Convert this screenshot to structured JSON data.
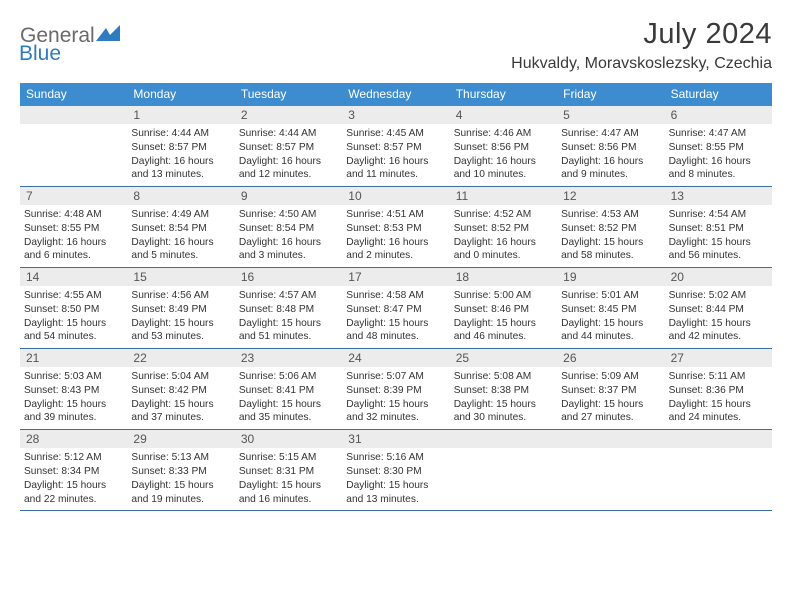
{
  "brand": {
    "general": "General",
    "blue": "Blue"
  },
  "title": "July 2024",
  "location": "Hukvaldy, Moravskoslezsky, Czechia",
  "colors": {
    "header_bg": "#3d8cd0",
    "header_text": "#ffffff",
    "daynum_bg": "#ececec",
    "daynum_text": "#555555",
    "body_text": "#333333",
    "border": "#3a6fa0",
    "brand_gray": "#6a6a6a",
    "brand_blue": "#2f7bbf"
  },
  "dow": [
    "Sunday",
    "Monday",
    "Tuesday",
    "Wednesday",
    "Thursday",
    "Friday",
    "Saturday"
  ],
  "weeks": [
    [
      {
        "num": "",
        "lines": []
      },
      {
        "num": "1",
        "lines": [
          "Sunrise: 4:44 AM",
          "Sunset: 8:57 PM",
          "Daylight: 16 hours",
          "and 13 minutes."
        ]
      },
      {
        "num": "2",
        "lines": [
          "Sunrise: 4:44 AM",
          "Sunset: 8:57 PM",
          "Daylight: 16 hours",
          "and 12 minutes."
        ]
      },
      {
        "num": "3",
        "lines": [
          "Sunrise: 4:45 AM",
          "Sunset: 8:57 PM",
          "Daylight: 16 hours",
          "and 11 minutes."
        ]
      },
      {
        "num": "4",
        "lines": [
          "Sunrise: 4:46 AM",
          "Sunset: 8:56 PM",
          "Daylight: 16 hours",
          "and 10 minutes."
        ]
      },
      {
        "num": "5",
        "lines": [
          "Sunrise: 4:47 AM",
          "Sunset: 8:56 PM",
          "Daylight: 16 hours",
          "and 9 minutes."
        ]
      },
      {
        "num": "6",
        "lines": [
          "Sunrise: 4:47 AM",
          "Sunset: 8:55 PM",
          "Daylight: 16 hours",
          "and 8 minutes."
        ]
      }
    ],
    [
      {
        "num": "7",
        "lines": [
          "Sunrise: 4:48 AM",
          "Sunset: 8:55 PM",
          "Daylight: 16 hours",
          "and 6 minutes."
        ]
      },
      {
        "num": "8",
        "lines": [
          "Sunrise: 4:49 AM",
          "Sunset: 8:54 PM",
          "Daylight: 16 hours",
          "and 5 minutes."
        ]
      },
      {
        "num": "9",
        "lines": [
          "Sunrise: 4:50 AM",
          "Sunset: 8:54 PM",
          "Daylight: 16 hours",
          "and 3 minutes."
        ]
      },
      {
        "num": "10",
        "lines": [
          "Sunrise: 4:51 AM",
          "Sunset: 8:53 PM",
          "Daylight: 16 hours",
          "and 2 minutes."
        ]
      },
      {
        "num": "11",
        "lines": [
          "Sunrise: 4:52 AM",
          "Sunset: 8:52 PM",
          "Daylight: 16 hours",
          "and 0 minutes."
        ]
      },
      {
        "num": "12",
        "lines": [
          "Sunrise: 4:53 AM",
          "Sunset: 8:52 PM",
          "Daylight: 15 hours",
          "and 58 minutes."
        ]
      },
      {
        "num": "13",
        "lines": [
          "Sunrise: 4:54 AM",
          "Sunset: 8:51 PM",
          "Daylight: 15 hours",
          "and 56 minutes."
        ]
      }
    ],
    [
      {
        "num": "14",
        "lines": [
          "Sunrise: 4:55 AM",
          "Sunset: 8:50 PM",
          "Daylight: 15 hours",
          "and 54 minutes."
        ]
      },
      {
        "num": "15",
        "lines": [
          "Sunrise: 4:56 AM",
          "Sunset: 8:49 PM",
          "Daylight: 15 hours",
          "and 53 minutes."
        ]
      },
      {
        "num": "16",
        "lines": [
          "Sunrise: 4:57 AM",
          "Sunset: 8:48 PM",
          "Daylight: 15 hours",
          "and 51 minutes."
        ]
      },
      {
        "num": "17",
        "lines": [
          "Sunrise: 4:58 AM",
          "Sunset: 8:47 PM",
          "Daylight: 15 hours",
          "and 48 minutes."
        ]
      },
      {
        "num": "18",
        "lines": [
          "Sunrise: 5:00 AM",
          "Sunset: 8:46 PM",
          "Daylight: 15 hours",
          "and 46 minutes."
        ]
      },
      {
        "num": "19",
        "lines": [
          "Sunrise: 5:01 AM",
          "Sunset: 8:45 PM",
          "Daylight: 15 hours",
          "and 44 minutes."
        ]
      },
      {
        "num": "20",
        "lines": [
          "Sunrise: 5:02 AM",
          "Sunset: 8:44 PM",
          "Daylight: 15 hours",
          "and 42 minutes."
        ]
      }
    ],
    [
      {
        "num": "21",
        "lines": [
          "Sunrise: 5:03 AM",
          "Sunset: 8:43 PM",
          "Daylight: 15 hours",
          "and 39 minutes."
        ]
      },
      {
        "num": "22",
        "lines": [
          "Sunrise: 5:04 AM",
          "Sunset: 8:42 PM",
          "Daylight: 15 hours",
          "and 37 minutes."
        ]
      },
      {
        "num": "23",
        "lines": [
          "Sunrise: 5:06 AM",
          "Sunset: 8:41 PM",
          "Daylight: 15 hours",
          "and 35 minutes."
        ]
      },
      {
        "num": "24",
        "lines": [
          "Sunrise: 5:07 AM",
          "Sunset: 8:39 PM",
          "Daylight: 15 hours",
          "and 32 minutes."
        ]
      },
      {
        "num": "25",
        "lines": [
          "Sunrise: 5:08 AM",
          "Sunset: 8:38 PM",
          "Daylight: 15 hours",
          "and 30 minutes."
        ]
      },
      {
        "num": "26",
        "lines": [
          "Sunrise: 5:09 AM",
          "Sunset: 8:37 PM",
          "Daylight: 15 hours",
          "and 27 minutes."
        ]
      },
      {
        "num": "27",
        "lines": [
          "Sunrise: 5:11 AM",
          "Sunset: 8:36 PM",
          "Daylight: 15 hours",
          "and 24 minutes."
        ]
      }
    ],
    [
      {
        "num": "28",
        "lines": [
          "Sunrise: 5:12 AM",
          "Sunset: 8:34 PM",
          "Daylight: 15 hours",
          "and 22 minutes."
        ]
      },
      {
        "num": "29",
        "lines": [
          "Sunrise: 5:13 AM",
          "Sunset: 8:33 PM",
          "Daylight: 15 hours",
          "and 19 minutes."
        ]
      },
      {
        "num": "30",
        "lines": [
          "Sunrise: 5:15 AM",
          "Sunset: 8:31 PM",
          "Daylight: 15 hours",
          "and 16 minutes."
        ]
      },
      {
        "num": "31",
        "lines": [
          "Sunrise: 5:16 AM",
          "Sunset: 8:30 PM",
          "Daylight: 15 hours",
          "and 13 minutes."
        ]
      },
      {
        "num": "",
        "lines": []
      },
      {
        "num": "",
        "lines": []
      },
      {
        "num": "",
        "lines": []
      }
    ]
  ]
}
